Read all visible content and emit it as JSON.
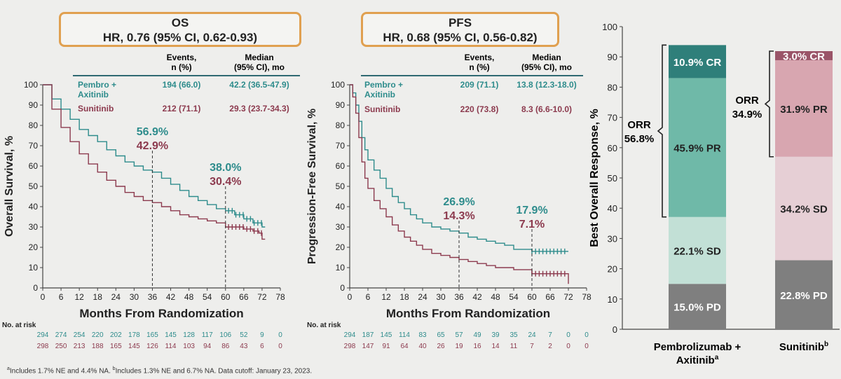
{
  "colors": {
    "pembro": "#2e8c8c",
    "sunitinib": "#8c3a4e",
    "box_border": "#e0a050",
    "cr": "#2f7f7a",
    "pr": "#6fb9a8",
    "sd": "#c2e0d6",
    "pd": "#7f7f7f",
    "s_cr": "#9a5468",
    "s_pr": "#d8a6b0",
    "s_sd": "#e6cfd5"
  },
  "footnote": {
    "a": "a",
    "a_text": "Includes 1.7% NE and 4.4% NA. ",
    "b": "b",
    "b_text": "Includes 1.3% NE and 6.7% NA. Data cutoff: January 23, 2023."
  },
  "chart_data": [
    {
      "type": "line",
      "title": "OS",
      "subtitle": "HR, 0.76 (95% CI, 0.62-0.93)",
      "xlabel": "Months From Randomization",
      "ylabel": "Overall Survival, %",
      "xlim": [
        0,
        78
      ],
      "ylim": [
        0,
        100
      ],
      "x_ticks": [
        "0",
        "6",
        "12",
        "18",
        "24",
        "30",
        "36",
        "42",
        "48",
        "54",
        "60",
        "66",
        "72",
        "78"
      ],
      "y_ticks": [
        "0",
        "10",
        "20",
        "30",
        "40",
        "50",
        "60",
        "70",
        "80",
        "90",
        "100"
      ],
      "table_headers": {
        "events": [
          "Events,",
          "n (%)"
        ],
        "median": [
          "Median",
          "(95% CI), mo"
        ]
      },
      "series": [
        {
          "name": "Pembro + Axitinib",
          "name_lines": [
            "Pembro +",
            "Axitinib"
          ],
          "events": "194 (66.0)",
          "median": "42.2 (36.5-47.9)",
          "x": [
            0,
            3,
            6,
            9,
            12,
            15,
            18,
            21,
            24,
            27,
            30,
            33,
            36,
            39,
            42,
            45,
            48,
            51,
            54,
            57,
            60,
            63,
            66,
            69,
            72,
            73
          ],
          "y": [
            100,
            93,
            88,
            83,
            78,
            75,
            72,
            68,
            65,
            62,
            60,
            58,
            57,
            54,
            51,
            48,
            45,
            43,
            41,
            39,
            38,
            36,
            34,
            32,
            30,
            30
          ],
          "risk": [
            "294",
            "274",
            "254",
            "220",
            "202",
            "178",
            "165",
            "145",
            "128",
            "117",
            "106",
            "52",
            "9",
            "0"
          ]
        },
        {
          "name": "Sunitinib",
          "name_lines": [
            "Sunitinib"
          ],
          "events": "212 (71.1)",
          "median": "29.3 (23.7-34.3)",
          "x": [
            0,
            3,
            6,
            9,
            12,
            15,
            18,
            21,
            24,
            27,
            30,
            33,
            36,
            39,
            42,
            45,
            48,
            51,
            54,
            57,
            60,
            63,
            66,
            69,
            71,
            72,
            73
          ],
          "y": [
            100,
            88,
            79,
            72,
            66,
            61,
            57,
            53,
            50,
            47,
            45,
            43,
            42,
            40,
            38,
            36,
            35,
            34,
            33,
            32,
            30,
            30,
            29,
            28,
            27,
            24,
            24
          ],
          "risk": [
            "298",
            "250",
            "213",
            "188",
            "165",
            "145",
            "126",
            "114",
            "103",
            "94",
            "86",
            "43",
            "6",
            "0"
          ]
        }
      ],
      "annotations": [
        {
          "x": 36,
          "pembro": "56.9%",
          "sunitinib": "42.9%"
        },
        {
          "x": 60,
          "pembro": "38.0%",
          "sunitinib": "30.4%"
        }
      ],
      "risk_label": "No. at risk",
      "legend": "top-right",
      "grid": false
    },
    {
      "type": "line",
      "title": "PFS",
      "subtitle": "HR, 0.68 (95% CI, 0.56-0.82)",
      "xlabel": "Months From Randomization",
      "ylabel": "Progression-Free Survival, %",
      "xlim": [
        0,
        78
      ],
      "ylim": [
        0,
        100
      ],
      "x_ticks": [
        "0",
        "6",
        "12",
        "18",
        "24",
        "30",
        "36",
        "42",
        "48",
        "54",
        "60",
        "66",
        "72",
        "78"
      ],
      "y_ticks": [
        "0",
        "10",
        "20",
        "30",
        "40",
        "50",
        "60",
        "70",
        "80",
        "90",
        "100"
      ],
      "table_headers": {
        "events": [
          "Events,",
          "n (%)"
        ],
        "median": [
          "Median",
          "(95% CI), mo"
        ]
      },
      "series": [
        {
          "name": "Pembro + Axitinib",
          "name_lines": [
            "Pembro +",
            "Axitinib"
          ],
          "events": "209 (71.1)",
          "median": "13.8 (12.3-18.0)",
          "x": [
            0,
            1,
            2,
            3,
            4,
            5,
            6,
            8,
            10,
            12,
            14,
            16,
            18,
            20,
            22,
            24,
            27,
            30,
            33,
            36,
            39,
            42,
            45,
            48,
            51,
            54,
            57,
            60,
            63,
            66,
            69,
            72
          ],
          "y": [
            100,
            96,
            90,
            82,
            74,
            68,
            63,
            58,
            54,
            49,
            45,
            42,
            39,
            36,
            34,
            32,
            30,
            29,
            28,
            27,
            25,
            24,
            23,
            22,
            21,
            19,
            19,
            18,
            18,
            18,
            18,
            18
          ],
          "risk": [
            "294",
            "187",
            "145",
            "114",
            "83",
            "65",
            "57",
            "49",
            "39",
            "35",
            "24",
            "7",
            "0",
            "0"
          ]
        },
        {
          "name": "Sunitinib",
          "name_lines": [
            "Sunitinib"
          ],
          "events": "220 (73.8)",
          "median": "8.3 (6.6-10.0)",
          "x": [
            0,
            1,
            2,
            3,
            4,
            5,
            6,
            8,
            10,
            12,
            14,
            16,
            18,
            20,
            22,
            24,
            27,
            30,
            33,
            36,
            39,
            42,
            45,
            48,
            51,
            54,
            57,
            60,
            63,
            66,
            69,
            72
          ],
          "y": [
            100,
            94,
            86,
            74,
            62,
            54,
            49,
            43,
            39,
            35,
            31,
            28,
            25,
            23,
            21,
            19,
            17,
            16,
            15,
            14,
            13,
            12,
            11,
            10,
            10,
            9,
            9,
            7,
            7,
            7,
            7,
            2
          ],
          "risk": [
            "298",
            "147",
            "91",
            "64",
            "40",
            "26",
            "19",
            "16",
            "14",
            "11",
            "7",
            "2",
            "0",
            "0"
          ]
        }
      ],
      "annotations": [
        {
          "x": 36,
          "pembro": "26.9%",
          "sunitinib": "14.3%"
        },
        {
          "x": 60,
          "pembro": "17.9%",
          "sunitinib": "7.1%"
        }
      ],
      "risk_label": "No. at risk",
      "legend": "top-right",
      "grid": false
    },
    {
      "type": "bar",
      "stacked": true,
      "ylabel": "Best Overall Response, %",
      "ylim": [
        0,
        100
      ],
      "y_ticks": [
        "0",
        "10",
        "20",
        "30",
        "40",
        "50",
        "60",
        "70",
        "80",
        "90",
        "100"
      ],
      "categories": [
        {
          "main": "Pembrolizumab +",
          "line2": "Axitinib",
          "sup": "a"
        },
        {
          "main": "Sunitinib",
          "line2": "",
          "sup": "b"
        }
      ],
      "series": [
        {
          "name": "PD",
          "values": [
            15.0,
            22.8
          ],
          "labels": [
            "15.0% PD",
            "22.8% PD"
          ]
        },
        {
          "name": "SD",
          "values": [
            22.1,
            34.2
          ],
          "labels": [
            "22.1% SD",
            "34.2% SD"
          ]
        },
        {
          "name": "PR",
          "values": [
            45.9,
            31.9
          ],
          "labels": [
            "45.9% PR",
            "31.9% PR"
          ]
        },
        {
          "name": "CR",
          "values": [
            10.9,
            3.0
          ],
          "labels": [
            "10.9% CR",
            "3.0% CR"
          ]
        }
      ],
      "orr": [
        {
          "label": "ORR",
          "value": "56.8%"
        },
        {
          "label": "ORR",
          "value": "34.9%"
        }
      ]
    }
  ]
}
